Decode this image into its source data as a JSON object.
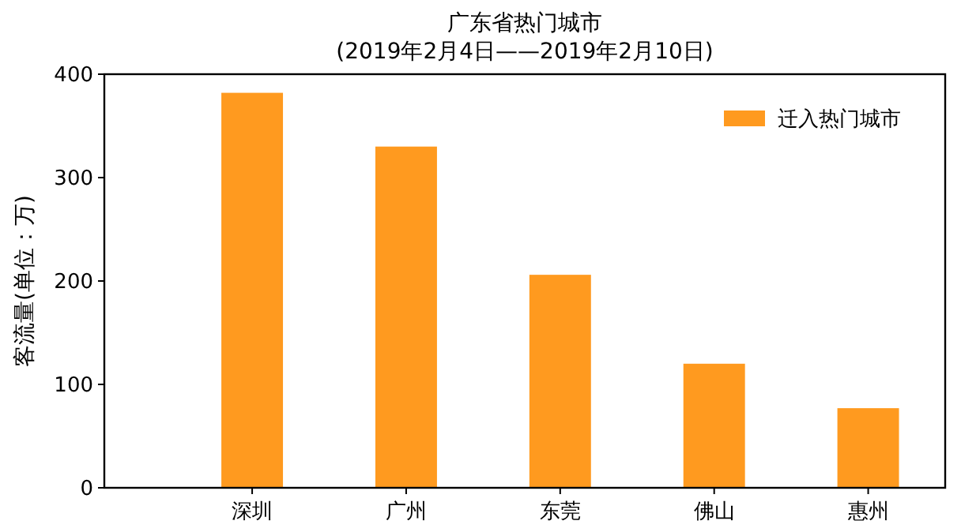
{
  "chart_data": {
    "type": "bar",
    "title": "广东省热门城市",
    "subtitle": "(2019年2月4日——2019年2月10日)",
    "ylabel": "客流量(单位：万)",
    "categories": [
      "深圳",
      "广州",
      "东莞",
      "佛山",
      "惠州"
    ],
    "series": [
      {
        "name": "迁入热门城市",
        "color": "#ff9a1f",
        "values": [
          382,
          330,
          206,
          120,
          77
        ]
      }
    ],
    "ylim": [
      0,
      400
    ],
    "yticks": [
      0,
      100,
      200,
      300,
      400
    ],
    "grid": false,
    "legend": "top right"
  }
}
